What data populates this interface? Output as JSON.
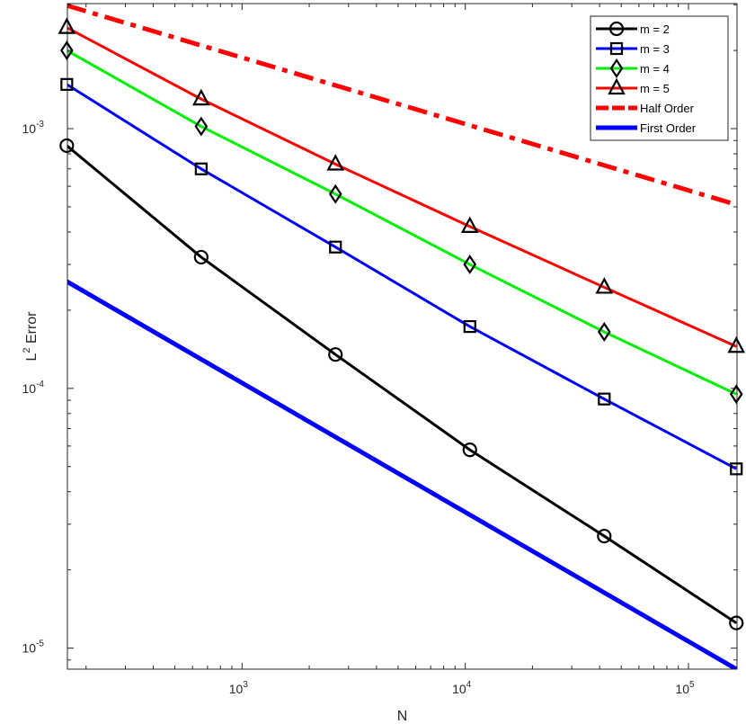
{
  "chart_data": {
    "type": "line",
    "xscale": "log",
    "yscale": "log",
    "xlabel": "N",
    "ylabel_base": "L",
    "ylabel_sup": "2",
    "ylabel_rest": " Error",
    "xlim": [
      165,
      165000
    ],
    "ylim": [
      8.3e-06,
      0.00303
    ],
    "xticks": [
      {
        "value": 1000,
        "base": "10",
        "exp": "3"
      },
      {
        "value": 10000,
        "base": "10",
        "exp": "4"
      },
      {
        "value": 100000,
        "base": "10",
        "exp": "5"
      }
    ],
    "yticks": [
      {
        "value": 1e-05,
        "base": "10",
        "exp": "-5"
      },
      {
        "value": 0.0001,
        "base": "10",
        "exp": "-4"
      },
      {
        "value": 0.001,
        "base": "10",
        "exp": "-3"
      }
    ],
    "grid": false,
    "legend_position": "top-right",
    "series": [
      {
        "name": "m = 2",
        "color": "#000000",
        "marker": "circle",
        "style": "solid",
        "x": [
          164,
          656,
          2621,
          10485,
          41943,
          163840
        ],
        "y": [
          0.00086,
          0.00032,
          0.000135,
          5.8e-05,
          2.7e-05,
          1.25e-05
        ]
      },
      {
        "name": "m = 3",
        "color": "#0000ff",
        "marker": "square",
        "style": "solid",
        "x": [
          164,
          656,
          2621,
          10485,
          41943,
          163840
        ],
        "y": [
          0.00148,
          0.0007,
          0.00035,
          0.000173,
          9.1e-05,
          4.9e-05
        ]
      },
      {
        "name": "m = 4",
        "color": "#00ee00",
        "marker": "diamond",
        "style": "solid",
        "x": [
          164,
          656,
          2621,
          10485,
          41943,
          163840
        ],
        "y": [
          0.002,
          0.00102,
          0.00056,
          0.0003,
          0.000165,
          9.5e-05
        ]
      },
      {
        "name": "m = 5",
        "color": "#ff0000",
        "marker": "triangle",
        "style": "solid",
        "x": [
          164,
          656,
          2621,
          10485,
          41943,
          163840
        ],
        "y": [
          0.00245,
          0.0013,
          0.00073,
          0.00042,
          0.000245,
          0.000145
        ]
      },
      {
        "name": "Half Order",
        "color": "#ff0000",
        "marker": "none",
        "style": "dashdot",
        "x": [
          164,
          163840
        ],
        "y": [
          0.00298,
          0.00051
        ]
      },
      {
        "name": "First Order",
        "color": "#0000ff",
        "marker": "none",
        "style": "solid-thick",
        "x": [
          164,
          163840
        ],
        "y": [
          0.000258,
          8.3e-06
        ]
      }
    ]
  }
}
